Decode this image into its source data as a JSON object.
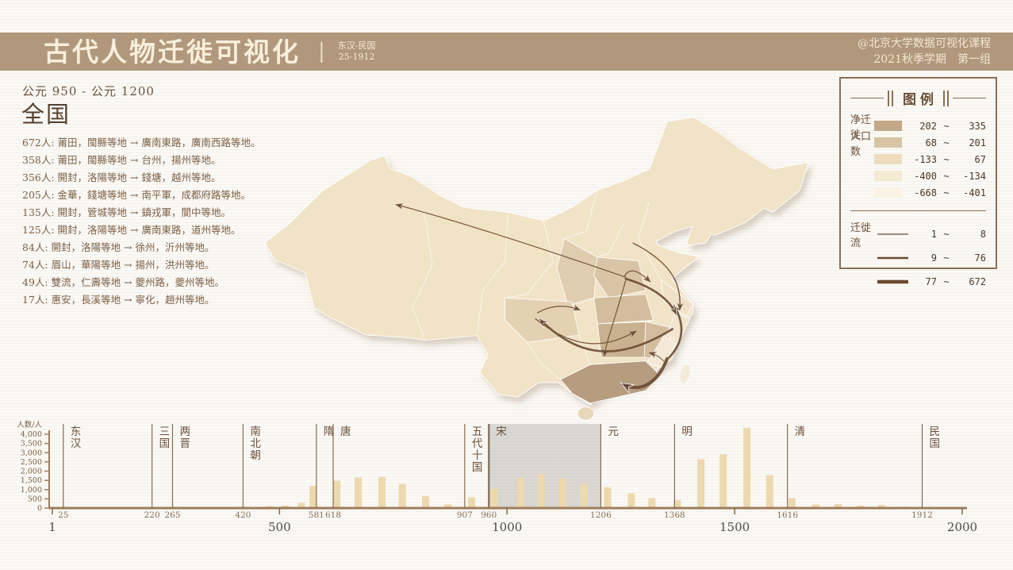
{
  "header": {
    "title": "古代人物迁徙可视化",
    "subtitle_range": "东汉-民国",
    "subtitle_years": "25-1912",
    "credit_line1": "@北京大学数据可视化课程",
    "credit_line2": "2021秋季学期　第一组"
  },
  "left_panel": {
    "period": "公元 950 - 公元 1200",
    "region": "全国",
    "routes": [
      "672人: 莆田，閩縣等地 → 廣南東路，廣南西路等地。",
      "358人: 莆田，閩縣等地 → 台州，揚州等地。",
      "356人: 開封，洛陽等地 → 錢塘，越州等地。",
      "205人: 金華，錢塘等地 → 南平軍，成都府路等地。",
      "135人: 開封，管城等地 → 鎮戎軍，閬中等地。",
      "125人: 開封，洛陽等地 → 廣南東路，道州等地。",
      "84人: 開封，洛陽等地 → 徐州，沂州等地。",
      "74人: 眉山，華陽等地 → 揚州，洪州等地。",
      "49人: 雙流，仁壽等地 → 夔州路，夔州等地。",
      "17人: 惠安，長溪等地 → 寧化，趙州等地。"
    ]
  },
  "legend": {
    "title": "图例",
    "net_label_line1": "净迁徙",
    "net_label_line2": "人口数",
    "tilde": "~",
    "net_classes": [
      {
        "color": "#c2a888",
        "min": "202",
        "max": "335"
      },
      {
        "color": "#d8c4a4",
        "min": "68",
        "max": "201"
      },
      {
        "color": "#eedcbc",
        "min": "-133",
        "max": "67"
      },
      {
        "color": "#f5ead3",
        "min": "-400",
        "max": "-134"
      },
      {
        "color": "#faf3e4",
        "min": "-668",
        "max": "-401"
      }
    ],
    "flow_label": "迁徙流",
    "flow_classes": [
      {
        "stroke": 1.2,
        "min": "1",
        "max": "8"
      },
      {
        "stroke": 2.6,
        "min": "9",
        "max": "76"
      },
      {
        "stroke": 4.4,
        "min": "77",
        "max": "672"
      }
    ],
    "arrow_color": "#6b4a31"
  },
  "chart_data": {
    "type": "bar",
    "ylabel": "人数/人",
    "x_range": [
      1,
      2000
    ],
    "y_range": [
      0,
      4000
    ],
    "yticks": [
      "0",
      "500",
      "1,000",
      "1,500",
      "2,000",
      "2,500",
      "3,000",
      "3,500",
      "4,000"
    ],
    "x_major": [
      1,
      500,
      1000,
      1500,
      2000
    ],
    "highlight": {
      "start": 960,
      "end": 1206
    },
    "bar_color": "#eed8ae",
    "dynasties": [
      {
        "name": "东汉",
        "year": 25
      },
      {
        "name": "三国",
        "year": 220
      },
      {
        "name": "两晋",
        "year": 265
      },
      {
        "name": "南北朝",
        "year": 420
      },
      {
        "name": "隋",
        "year": 581
      },
      {
        "name": "唐",
        "year": 618
      },
      {
        "name": "五代十国",
        "year": 907
      },
      {
        "name": "宋",
        "year": 960
      },
      {
        "name": "元",
        "year": 1206
      },
      {
        "name": "明",
        "year": 1368
      },
      {
        "name": "清",
        "year": 1616
      },
      {
        "name": "民国",
        "year": 1912
      }
    ],
    "bars": [
      {
        "year": 478,
        "value": 100
      },
      {
        "year": 513,
        "value": 130
      },
      {
        "year": 548,
        "value": 280
      },
      {
        "year": 574,
        "value": 1200
      },
      {
        "year": 626,
        "value": 1480
      },
      {
        "year": 673,
        "value": 1650
      },
      {
        "year": 725,
        "value": 1690
      },
      {
        "year": 770,
        "value": 1310
      },
      {
        "year": 821,
        "value": 640
      },
      {
        "year": 870,
        "value": 210
      },
      {
        "year": 922,
        "value": 590
      },
      {
        "year": 971,
        "value": 1050
      },
      {
        "year": 1030,
        "value": 1650
      },
      {
        "year": 1075,
        "value": 1850
      },
      {
        "year": 1122,
        "value": 1590
      },
      {
        "year": 1169,
        "value": 1330
      },
      {
        "year": 1221,
        "value": 1130
      },
      {
        "year": 1273,
        "value": 800
      },
      {
        "year": 1318,
        "value": 540
      },
      {
        "year": 1374,
        "value": 440
      },
      {
        "year": 1426,
        "value": 2650
      },
      {
        "year": 1475,
        "value": 2920
      },
      {
        "year": 1527,
        "value": 4350
      },
      {
        "year": 1577,
        "value": 1790
      },
      {
        "year": 1626,
        "value": 540
      },
      {
        "year": 1678,
        "value": 210
      },
      {
        "year": 1727,
        "value": 215
      },
      {
        "year": 1777,
        "value": 140
      },
      {
        "year": 1823,
        "value": 170
      },
      {
        "year": 1875,
        "value": 80
      }
    ]
  }
}
